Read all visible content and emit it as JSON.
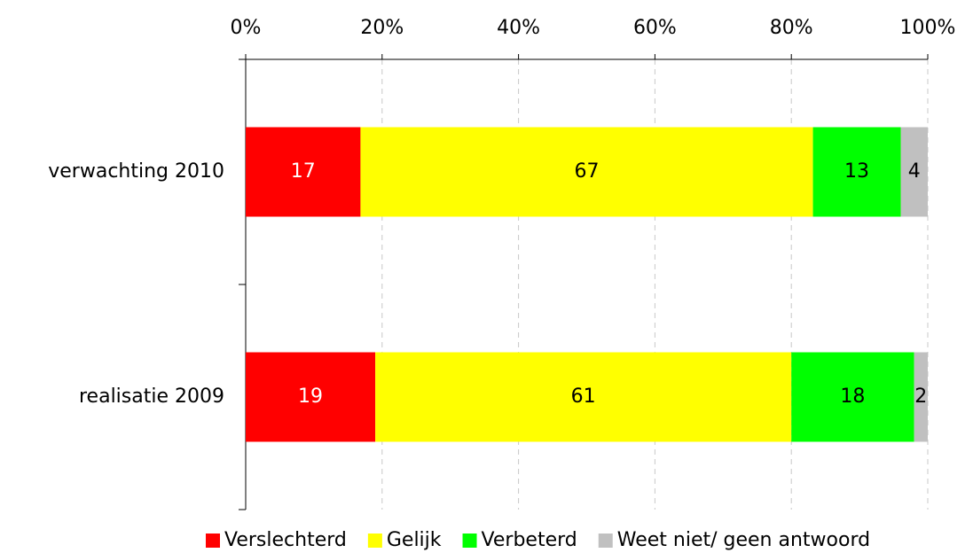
{
  "chart_data": {
    "type": "bar",
    "orientation": "horizontal",
    "stacking": "percent",
    "categories": [
      "verwachting 2010",
      "realisatie 2009"
    ],
    "series": [
      {
        "name": "Verslechterd",
        "color": "#ff0000",
        "label_color": "#ffffff",
        "values": [
          17,
          19
        ]
      },
      {
        "name": "Gelijk",
        "color": "#ffff00",
        "label_color": "#000000",
        "values": [
          67,
          61
        ]
      },
      {
        "name": "Verbeterd",
        "color": "#00ff00",
        "label_color": "#000000",
        "values": [
          13,
          18
        ]
      },
      {
        "name": "Weet niet/ geen antwoord",
        "color": "#c0c0c0",
        "label_color": "#000000",
        "values": [
          4,
          2
        ]
      }
    ],
    "xlim": [
      0,
      100
    ],
    "xticks": [
      {
        "value": 0,
        "label": "0%"
      },
      {
        "value": 20,
        "label": "20%"
      },
      {
        "value": 40,
        "label": "40%"
      },
      {
        "value": 60,
        "label": "60%"
      },
      {
        "value": 80,
        "label": "80%"
      },
      {
        "value": 100,
        "label": "100%"
      }
    ],
    "grid": true,
    "legend": "bottom"
  }
}
